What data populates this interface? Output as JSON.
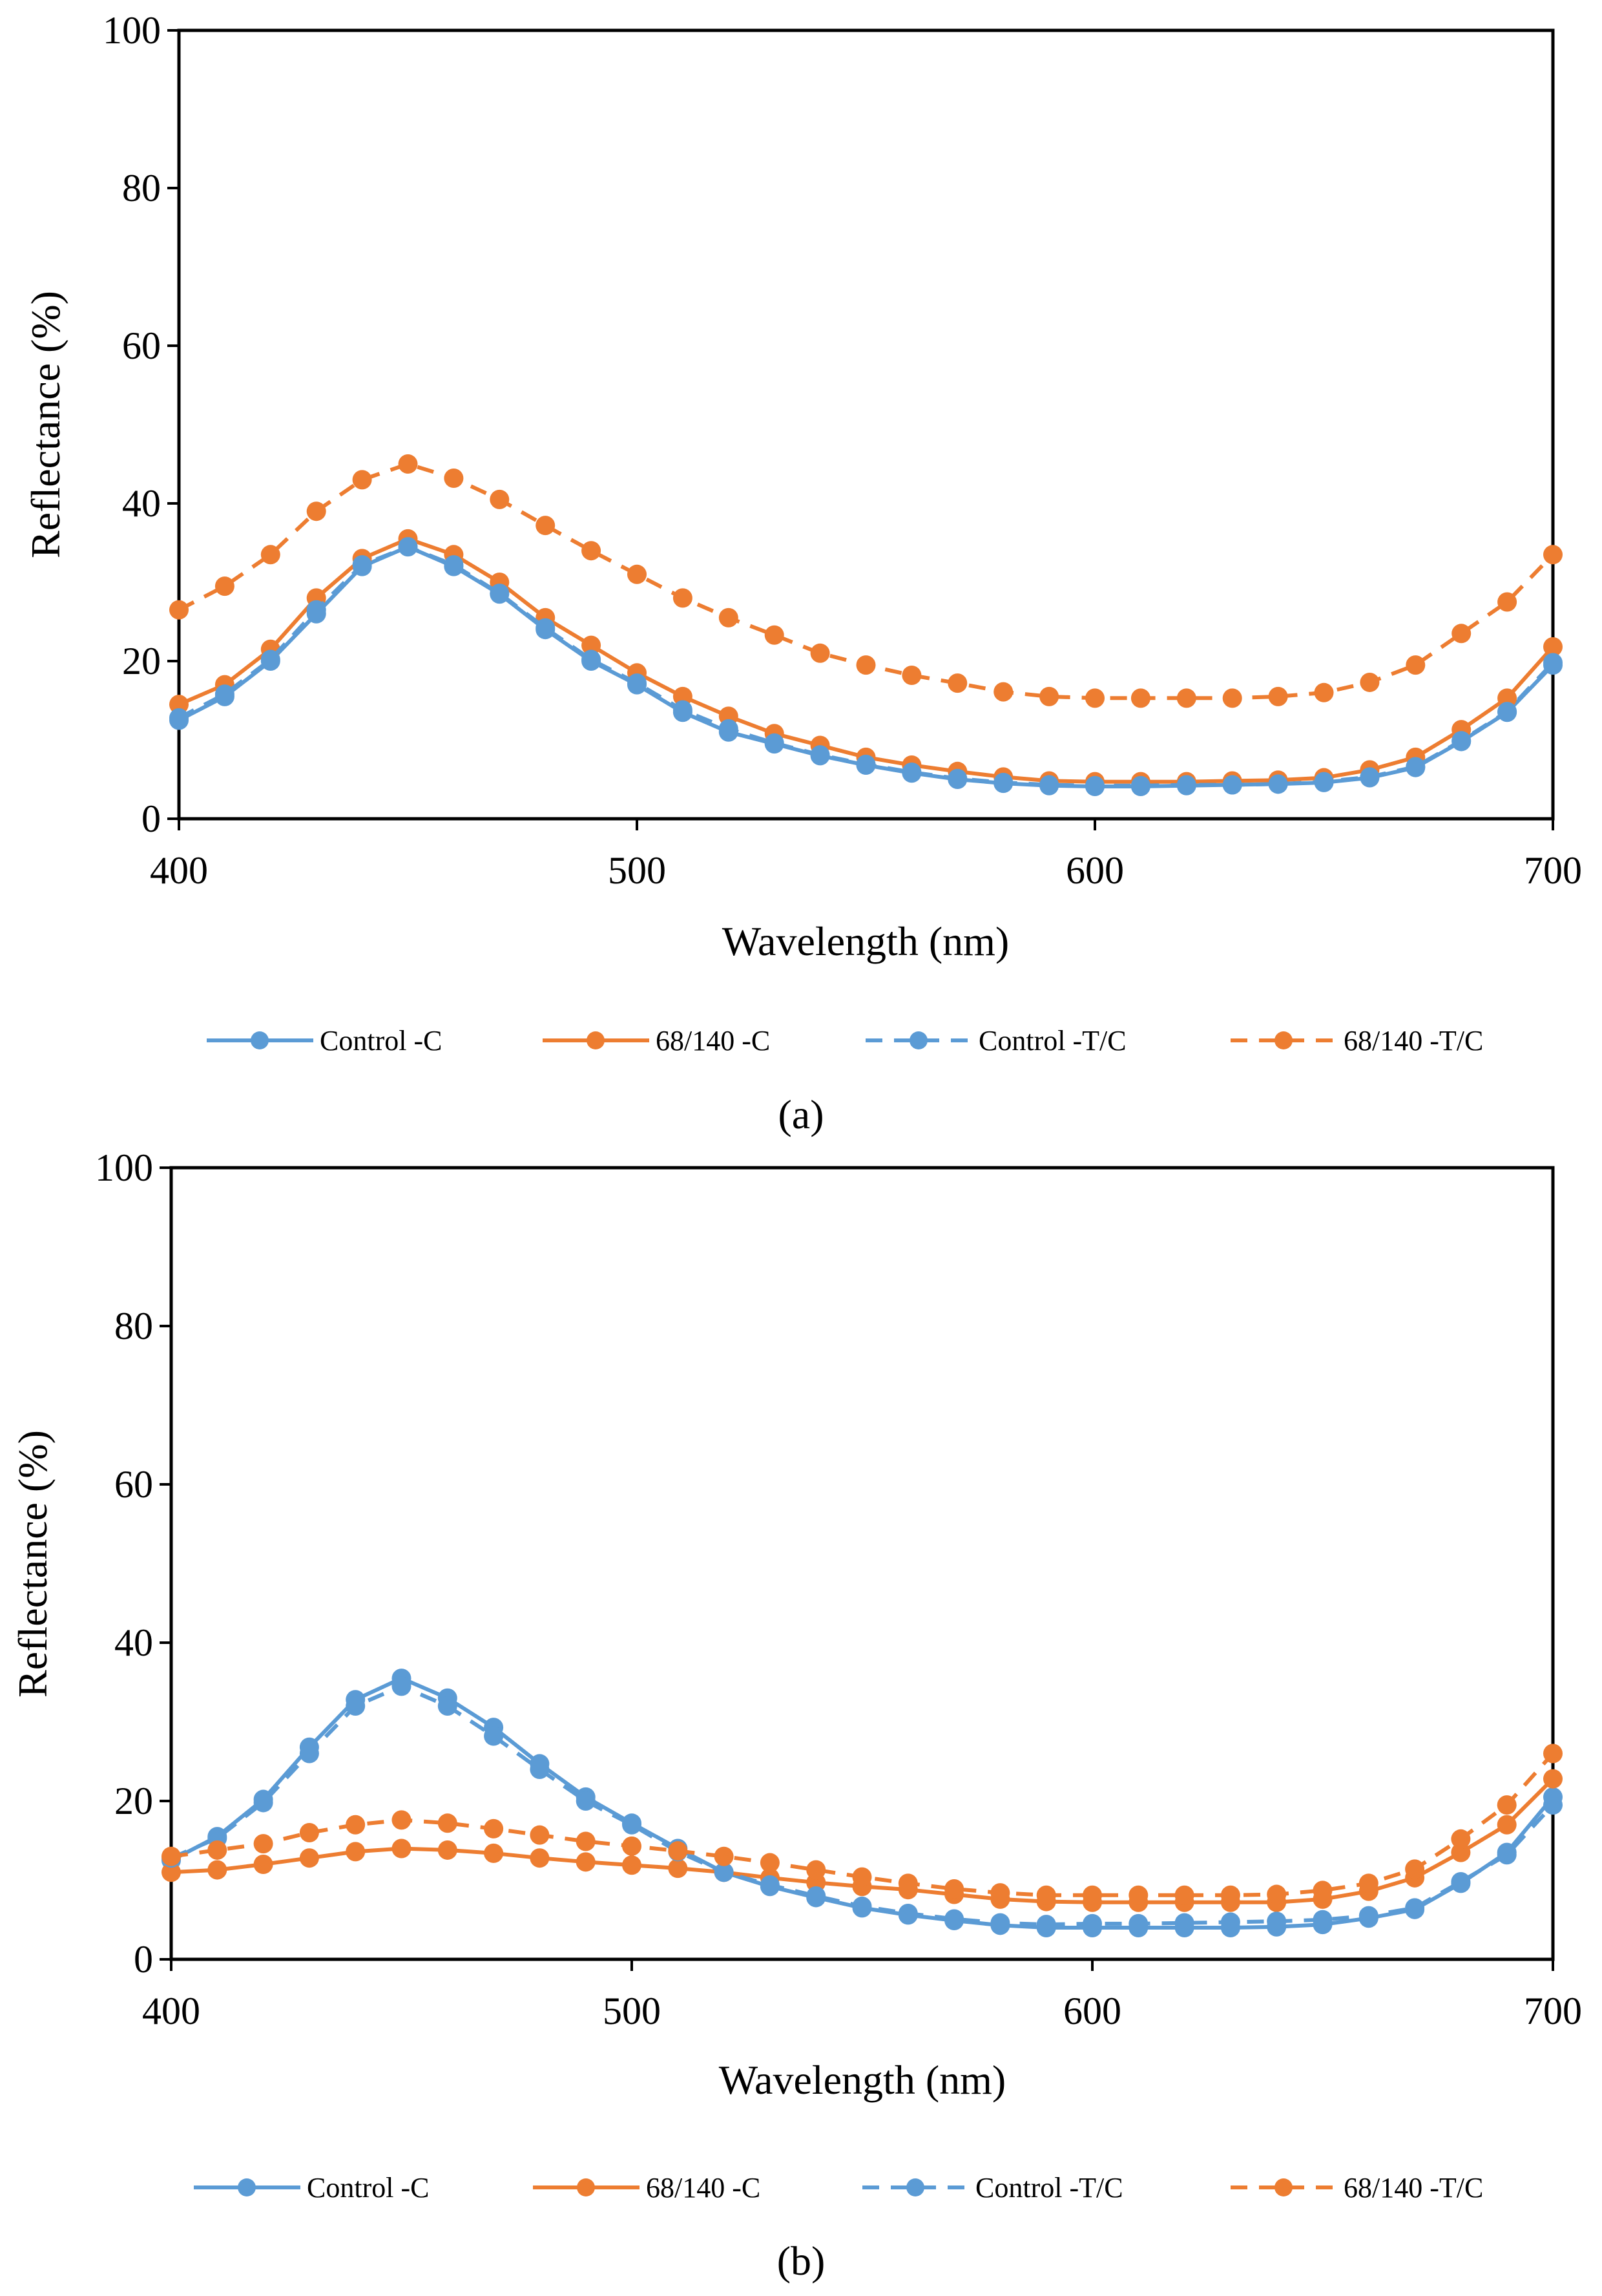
{
  "chart_data": [
    {
      "type": "line",
      "panel_label": "(a)",
      "xlabel": "Wavelength (nm)",
      "ylabel": "Reflectance (%)",
      "xlim": [
        400,
        700
      ],
      "ylim": [
        0,
        100
      ],
      "xticks": [
        400,
        500,
        600,
        700
      ],
      "yticks": [
        0,
        20,
        40,
        60,
        80,
        100
      ],
      "grid": false,
      "legend_position": "bottom",
      "x": [
        400,
        410,
        420,
        430,
        440,
        450,
        460,
        470,
        480,
        490,
        500,
        510,
        520,
        530,
        540,
        550,
        560,
        570,
        580,
        590,
        600,
        610,
        620,
        630,
        640,
        650,
        660,
        670,
        680,
        690,
        700
      ],
      "series": [
        {
          "name": "Control -C",
          "color": "#5B9BD5",
          "dash": "solid",
          "values": [
            12.5,
            15.5,
            20,
            26,
            32,
            34.5,
            32,
            28.5,
            24,
            20,
            17,
            13.5,
            11,
            9.5,
            8,
            6.8,
            5.8,
            5,
            4.5,
            4.2,
            4.1,
            4.1,
            4.2,
            4.3,
            4.4,
            4.6,
            5.2,
            6.5,
            9.8,
            13.5,
            19.5
          ]
        },
        {
          "name": "68/140 -C",
          "color": "#ED7D31",
          "dash": "solid",
          "values": [
            14.5,
            17,
            21.5,
            28,
            33,
            35.5,
            33.5,
            30,
            25.5,
            22,
            18.5,
            15.5,
            13,
            10.8,
            9.3,
            7.8,
            6.8,
            6,
            5.3,
            4.8,
            4.7,
            4.7,
            4.7,
            4.8,
            4.9,
            5.2,
            6.2,
            7.8,
            11.3,
            15.3,
            21.8
          ]
        },
        {
          "name": "Control -T/C",
          "color": "#5B9BD5",
          "dash": "dashed",
          "values": [
            12.8,
            15.8,
            20.2,
            26.5,
            32.2,
            34.5,
            32.2,
            28.6,
            24.2,
            20.2,
            17.2,
            13.8,
            11.4,
            9.6,
            8.1,
            6.9,
            5.9,
            5.1,
            4.6,
            4.3,
            4.2,
            4.2,
            4.3,
            4.3,
            4.4,
            4.7,
            5.3,
            6.6,
            9.9,
            13.6,
            19.8
          ]
        },
        {
          "name": "68/140 -T/C",
          "color": "#ED7D31",
          "dash": "dashed",
          "values": [
            26.5,
            29.5,
            33.5,
            39,
            43,
            45,
            43.2,
            40.5,
            37.2,
            34,
            31,
            28,
            25.5,
            23.3,
            21,
            19.5,
            18.2,
            17.2,
            16.1,
            15.5,
            15.3,
            15.3,
            15.3,
            15.3,
            15.5,
            16,
            17.3,
            19.5,
            23.5,
            27.5,
            33.5
          ]
        }
      ]
    },
    {
      "type": "line",
      "panel_label": "(b)",
      "xlabel": "Wavelength (nm)",
      "ylabel": "Reflectance (%)",
      "xlim": [
        400,
        700
      ],
      "ylim": [
        0,
        100
      ],
      "xticks": [
        400,
        500,
        600,
        700
      ],
      "yticks": [
        0,
        20,
        40,
        60,
        80,
        100
      ],
      "grid": false,
      "legend_position": "bottom",
      "x": [
        400,
        410,
        420,
        430,
        440,
        450,
        460,
        470,
        480,
        490,
        500,
        510,
        520,
        530,
        540,
        550,
        560,
        570,
        580,
        590,
        600,
        610,
        620,
        630,
        640,
        650,
        660,
        670,
        680,
        690,
        700
      ],
      "series": [
        {
          "name": "Control -C",
          "color": "#5B9BD5",
          "dash": "solid",
          "values": [
            12.5,
            15.5,
            20.2,
            26.8,
            32.8,
            35.5,
            33,
            29.3,
            24.7,
            20.5,
            17.2,
            14,
            11,
            9.2,
            7.8,
            6.5,
            5.6,
            4.9,
            4.3,
            4,
            4,
            4,
            4,
            4,
            4.1,
            4.4,
            5.2,
            6.3,
            9.6,
            13.5,
            20.5
          ]
        },
        {
          "name": "68/140 -C",
          "color": "#ED7D31",
          "dash": "solid",
          "values": [
            11,
            11.3,
            12,
            12.8,
            13.6,
            14,
            13.8,
            13.4,
            12.8,
            12.3,
            11.9,
            11.5,
            11,
            10.3,
            9.7,
            9.2,
            8.8,
            8.2,
            7.6,
            7.3,
            7.2,
            7.2,
            7.2,
            7.2,
            7.2,
            7.6,
            8.6,
            10.3,
            13.5,
            17,
            22.8
          ]
        },
        {
          "name": "Control -T/C",
          "color": "#5B9BD5",
          "dash": "dashed",
          "values": [
            12.8,
            15.3,
            19.8,
            26,
            32,
            34.5,
            32,
            28.2,
            24,
            20,
            17,
            13.6,
            11,
            9.4,
            8,
            6.7,
            5.8,
            5.1,
            4.6,
            4.4,
            4.5,
            4.5,
            4.6,
            4.7,
            4.8,
            5,
            5.5,
            6.5,
            9.8,
            13.2,
            19.5
          ]
        },
        {
          "name": "68/140 -T/C",
          "color": "#ED7D31",
          "dash": "dashed",
          "values": [
            13,
            13.8,
            14.6,
            16,
            17,
            17.6,
            17.2,
            16.5,
            15.7,
            14.9,
            14.3,
            13.7,
            13,
            12.2,
            11.3,
            10.4,
            9.6,
            8.9,
            8.4,
            8.1,
            8.1,
            8.1,
            8.1,
            8.1,
            8.2,
            8.7,
            9.6,
            11.4,
            15.2,
            19.5,
            26
          ]
        }
      ]
    }
  ]
}
